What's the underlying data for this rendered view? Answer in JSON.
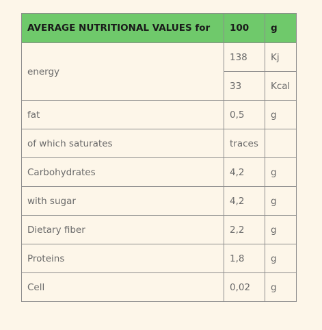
{
  "table": {
    "header": [
      "AVERAGE NUTRITIONAL VALUES for",
      "100",
      "g"
    ],
    "rows": [
      {
        "label": "energy",
        "entries": [
          {
            "value": "138",
            "unit": "Kj"
          },
          {
            "value": "33",
            "unit": "Kcal"
          }
        ]
      },
      {
        "label": "fat",
        "entries": [
          {
            "value": "0,5",
            "unit": "g"
          }
        ]
      },
      {
        "label": "of which saturates",
        "entries": [
          {
            "value": "traces"
          }
        ]
      },
      {
        "label": "Carbohydrates",
        "entries": [
          {
            "value": "4,2",
            "unit": "g"
          }
        ]
      },
      {
        "label": "with sugar",
        "entries": [
          {
            "value": "4,2",
            "unit": "g"
          }
        ]
      },
      {
        "label": "Dietary fiber",
        "entries": [
          {
            "value": "2,2",
            "unit": "g"
          }
        ]
      },
      {
        "label": "Proteins",
        "entries": [
          {
            "value": "1,8",
            "unit": "g"
          }
        ]
      },
      {
        "label": "Cell",
        "entries": [
          {
            "value": "0,02",
            "unit": "g"
          }
        ]
      }
    ]
  }
}
